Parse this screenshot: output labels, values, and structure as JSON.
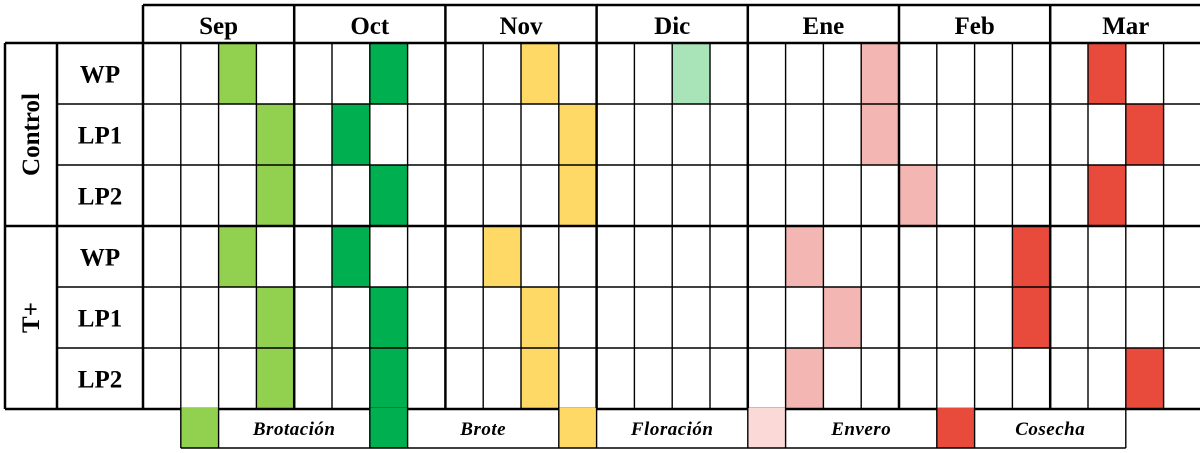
{
  "months": [
    "Sep",
    "Oct",
    "Nov",
    "Dic",
    "Ene",
    "Feb",
    "Mar"
  ],
  "weeks_per_month": 4,
  "groups": [
    {
      "label": "Control",
      "rows": [
        {
          "label": "WP",
          "marks": [
            {
              "week": 3,
              "stage": "brotacion"
            },
            {
              "week": 7,
              "stage": "brote"
            },
            {
              "week": 11,
              "stage": "floracion"
            },
            {
              "week": 15,
              "stage": "brote_light"
            },
            {
              "week": 20,
              "stage": "envero"
            },
            {
              "week": 26,
              "stage": "cosecha"
            }
          ]
        },
        {
          "label": "LP1",
          "marks": [
            {
              "week": 4,
              "stage": "brotacion"
            },
            {
              "week": 6,
              "stage": "brote"
            },
            {
              "week": 12,
              "stage": "floracion"
            },
            {
              "week": 20,
              "stage": "envero"
            },
            {
              "week": 27,
              "stage": "cosecha"
            }
          ]
        },
        {
          "label": "LP2",
          "marks": [
            {
              "week": 4,
              "stage": "brotacion"
            },
            {
              "week": 7,
              "stage": "brote"
            },
            {
              "week": 12,
              "stage": "floracion"
            },
            {
              "week": 21,
              "stage": "envero"
            },
            {
              "week": 26,
              "stage": "cosecha"
            }
          ]
        }
      ]
    },
    {
      "label": "T+",
      "rows": [
        {
          "label": "WP",
          "marks": [
            {
              "week": 3,
              "stage": "brotacion"
            },
            {
              "week": 6,
              "stage": "brote"
            },
            {
              "week": 10,
              "stage": "floracion"
            },
            {
              "week": 18,
              "stage": "envero"
            },
            {
              "week": 24,
              "stage": "cosecha"
            }
          ]
        },
        {
          "label": "LP1",
          "marks": [
            {
              "week": 4,
              "stage": "brotacion"
            },
            {
              "week": 7,
              "stage": "brote"
            },
            {
              "week": 11,
              "stage": "floracion"
            },
            {
              "week": 19,
              "stage": "envero"
            },
            {
              "week": 24,
              "stage": "cosecha"
            }
          ]
        },
        {
          "label": "LP2",
          "marks": [
            {
              "week": 4,
              "stage": "brotacion"
            },
            {
              "week": 7,
              "stage": "brote"
            },
            {
              "week": 11,
              "stage": "floracion"
            },
            {
              "week": 18,
              "stage": "envero"
            },
            {
              "week": 27,
              "stage": "cosecha"
            }
          ]
        }
      ]
    }
  ],
  "colors": {
    "brotacion": "#92d050",
    "brote": "#00b050",
    "brote_light": "#a9e4b9",
    "floracion": "#ffd966",
    "envero": "#f4b6b2",
    "envero_legend": "#fbd9d7",
    "cosecha": "#e84a3c"
  },
  "legend": [
    {
      "stage": "brotacion",
      "label": "Brotación"
    },
    {
      "stage": "brote",
      "label": "Brote"
    },
    {
      "stage": "floracion",
      "label": "Floración"
    },
    {
      "stage": "envero_legend",
      "label": "Envero"
    },
    {
      "stage": "cosecha",
      "label": "Cosecha"
    }
  ]
}
